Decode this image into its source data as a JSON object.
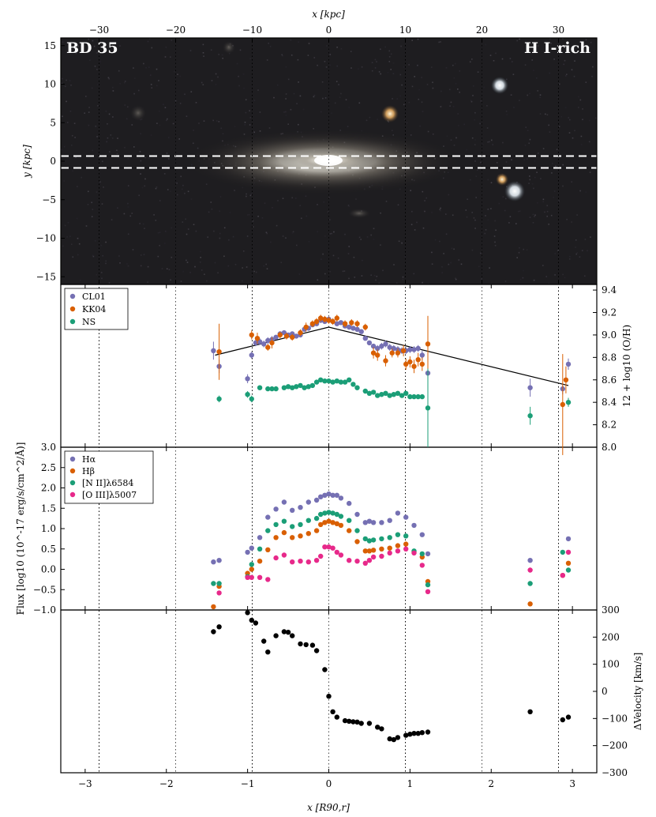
{
  "corner_left": "BD 35",
  "corner_right": "H I-rich",
  "x_bottom_label": "x [R90,r]",
  "x_top_label": "x [kpc]",
  "colors": {
    "CL01": "#7570b3",
    "KK04": "#d95f02",
    "NS": "#1b9e77",
    "Halpha": "#7570b3",
    "Hbeta": "#d95f02",
    "NII": "#1b9e77",
    "OIII": "#e7298a",
    "velocity": "#000000"
  },
  "chart_data": [
    {
      "type": "image",
      "panel": "image",
      "ylabel": "y [kpc]",
      "xlabel_top": "x [kpc]",
      "xlim": [
        -35,
        35
      ],
      "ylim": [
        -16,
        16
      ],
      "xticks": [
        -30,
        -20,
        -10,
        0,
        10,
        20,
        30
      ],
      "yticks": [
        -15,
        -10,
        -5,
        0,
        5,
        10,
        15
      ],
      "slit_y": [
        0.8,
        -0.8
      ]
    },
    {
      "type": "scatter",
      "panel": "metallicity",
      "ylabel": "12 + log10 (O/H)",
      "ylim": [
        8.0,
        9.45
      ],
      "yticks": [
        8.0,
        8.2,
        8.4,
        8.6,
        8.8,
        9.0,
        9.2,
        9.4
      ],
      "fit_line": {
        "x": [
          -1.4,
          0.0,
          2.95
        ],
        "y": [
          8.82,
          9.07,
          8.55
        ]
      },
      "series": [
        {
          "name": "CL01",
          "x": [
            -1.42,
            -1.35,
            -1.0,
            -0.95,
            -0.9,
            -0.85,
            -0.8,
            -0.75,
            -0.7,
            -0.65,
            -0.6,
            -0.55,
            -0.5,
            -0.45,
            -0.4,
            -0.35,
            -0.3,
            -0.25,
            -0.2,
            -0.15,
            -0.1,
            -0.05,
            0.0,
            0.05,
            0.1,
            0.15,
            0.2,
            0.25,
            0.3,
            0.35,
            0.4,
            0.45,
            0.5,
            0.55,
            0.6,
            0.65,
            0.7,
            0.75,
            0.8,
            0.85,
            0.9,
            0.95,
            1.0,
            1.05,
            1.1,
            1.15,
            1.22,
            2.48,
            2.88,
            2.95
          ],
          "y": [
            8.86,
            8.72,
            8.61,
            8.82,
            8.93,
            8.94,
            8.92,
            8.95,
            8.96,
            8.98,
            9.01,
            9.02,
            9.0,
            9.01,
            8.99,
            9.0,
            9.05,
            9.06,
            9.09,
            9.1,
            9.13,
            9.12,
            9.14,
            9.12,
            9.1,
            9.11,
            9.08,
            9.07,
            9.06,
            9.05,
            9.03,
            8.97,
            8.93,
            8.9,
            8.88,
            8.9,
            8.92,
            8.89,
            8.88,
            8.87,
            8.86,
            8.86,
            8.87,
            8.87,
            8.88,
            8.82,
            8.66,
            8.53,
            8.52,
            8.74
          ],
          "err": [
            0.08,
            0.06,
            0.04,
            0.03,
            0.03,
            0.03,
            0.03,
            0.03,
            0.03,
            0.02,
            0.02,
            0.02,
            0.02,
            0.02,
            0.02,
            0.02,
            0.02,
            0.02,
            0.02,
            0.02,
            0.02,
            0.02,
            0.02,
            0.02,
            0.02,
            0.02,
            0.02,
            0.02,
            0.02,
            0.02,
            0.02,
            0.02,
            0.02,
            0.02,
            0.03,
            0.03,
            0.03,
            0.03,
            0.03,
            0.03,
            0.03,
            0.03,
            0.03,
            0.03,
            0.03,
            0.04,
            0.1,
            0.08,
            0.05,
            0.05
          ]
        },
        {
          "name": "KK04",
          "x": [
            -1.35,
            -0.95,
            -0.88,
            -0.75,
            -0.7,
            -0.6,
            -0.52,
            -0.45,
            -0.35,
            -0.28,
            -0.2,
            -0.15,
            -0.1,
            -0.05,
            0.0,
            0.05,
            0.1,
            0.2,
            0.28,
            0.35,
            0.45,
            0.55,
            0.6,
            0.7,
            0.78,
            0.85,
            0.92,
            0.95,
            1.0,
            1.05,
            1.1,
            1.15,
            1.22,
            2.88,
            2.92
          ],
          "y": [
            8.85,
            9.0,
            8.97,
            8.89,
            8.93,
            9.0,
            8.99,
            8.98,
            9.02,
            9.07,
            9.1,
            9.12,
            9.15,
            9.14,
            9.13,
            9.12,
            9.15,
            9.1,
            9.11,
            9.1,
            9.07,
            8.84,
            8.82,
            8.77,
            8.84,
            8.84,
            8.86,
            8.74,
            8.76,
            8.72,
            8.78,
            8.74,
            8.92,
            8.38,
            8.6
          ],
          "err": [
            0.25,
            0.04,
            0.05,
            0.03,
            0.05,
            0.03,
            0.03,
            0.03,
            0.03,
            0.04,
            0.03,
            0.03,
            0.03,
            0.03,
            0.03,
            0.03,
            0.03,
            0.03,
            0.03,
            0.03,
            0.03,
            0.05,
            0.05,
            0.05,
            0.04,
            0.04,
            0.05,
            0.05,
            0.05,
            0.06,
            0.06,
            0.06,
            0.25,
            0.45,
            0.12
          ]
        },
        {
          "name": "NS",
          "x": [
            -1.35,
            -1.0,
            -0.95,
            -0.85,
            -0.75,
            -0.7,
            -0.65,
            -0.55,
            -0.5,
            -0.45,
            -0.4,
            -0.35,
            -0.3,
            -0.25,
            -0.2,
            -0.15,
            -0.1,
            -0.05,
            0.0,
            0.05,
            0.1,
            0.15,
            0.2,
            0.25,
            0.3,
            0.35,
            0.45,
            0.5,
            0.55,
            0.6,
            0.65,
            0.7,
            0.75,
            0.8,
            0.85,
            0.9,
            0.95,
            1.0,
            1.05,
            1.1,
            1.15,
            1.22,
            2.48,
            2.95
          ],
          "y": [
            8.43,
            8.47,
            8.43,
            8.53,
            8.52,
            8.52,
            8.52,
            8.53,
            8.54,
            8.53,
            8.54,
            8.55,
            8.53,
            8.54,
            8.55,
            8.58,
            8.6,
            8.59,
            8.59,
            8.58,
            8.59,
            8.58,
            8.58,
            8.6,
            8.56,
            8.53,
            8.5,
            8.48,
            8.49,
            8.46,
            8.47,
            8.48,
            8.46,
            8.47,
            8.48,
            8.46,
            8.48,
            8.45,
            8.45,
            8.45,
            8.45,
            8.35,
            8.28,
            8.4
          ],
          "err": [
            0.03,
            0.03,
            0.03,
            0.02,
            0.02,
            0.02,
            0.02,
            0.02,
            0.02,
            0.02,
            0.02,
            0.02,
            0.02,
            0.02,
            0.02,
            0.02,
            0.02,
            0.02,
            0.02,
            0.02,
            0.02,
            0.02,
            0.02,
            0.02,
            0.02,
            0.02,
            0.02,
            0.02,
            0.02,
            0.02,
            0.02,
            0.02,
            0.02,
            0.02,
            0.02,
            0.02,
            0.02,
            0.02,
            0.02,
            0.02,
            0.02,
            0.35,
            0.08,
            0.04
          ]
        }
      ]
    },
    {
      "type": "scatter",
      "panel": "flux",
      "ylabel": "Flux [log10 (10^-17 erg/s/cm^2/Å)]",
      "ylim": [
        -1.0,
        3.0
      ],
      "yticks": [
        -1.0,
        -0.5,
        0.0,
        0.5,
        1.0,
        1.5,
        2.0,
        2.5,
        3.0
      ],
      "series": [
        {
          "name": "Hα",
          "x": [
            -1.42,
            -1.35,
            -1.0,
            -0.95,
            -0.85,
            -0.75,
            -0.65,
            -0.55,
            -0.45,
            -0.35,
            -0.25,
            -0.15,
            -0.1,
            -0.05,
            0.0,
            0.05,
            0.1,
            0.15,
            0.25,
            0.35,
            0.45,
            0.5,
            0.55,
            0.65,
            0.75,
            0.85,
            0.95,
            1.05,
            1.15,
            1.22,
            2.48,
            2.95
          ],
          "y": [
            0.18,
            0.22,
            0.42,
            0.52,
            0.78,
            1.28,
            1.48,
            1.65,
            1.45,
            1.52,
            1.65,
            1.7,
            1.78,
            1.82,
            1.85,
            1.82,
            1.82,
            1.75,
            1.62,
            1.35,
            1.15,
            1.18,
            1.15,
            1.15,
            1.2,
            1.38,
            1.28,
            1.08,
            0.85,
            0.38,
            0.22,
            0.75
          ]
        },
        {
          "name": "Hβ",
          "x": [
            -1.42,
            -1.35,
            -1.0,
            -0.95,
            -0.85,
            -0.75,
            -0.65,
            -0.55,
            -0.45,
            -0.35,
            -0.25,
            -0.15,
            -0.1,
            -0.05,
            0.0,
            0.05,
            0.1,
            0.15,
            0.25,
            0.35,
            0.45,
            0.5,
            0.55,
            0.65,
            0.75,
            0.85,
            0.95,
            1.05,
            1.15,
            1.22,
            2.48,
            2.88,
            2.95
          ],
          "y": [
            -0.92,
            -0.42,
            -0.1,
            0.0,
            0.2,
            0.48,
            0.78,
            0.9,
            0.78,
            0.82,
            0.88,
            0.95,
            1.1,
            1.15,
            1.18,
            1.15,
            1.12,
            1.08,
            0.95,
            0.68,
            0.45,
            0.45,
            0.47,
            0.5,
            0.52,
            0.58,
            0.62,
            0.42,
            0.3,
            -0.3,
            -0.85,
            -0.15,
            0.15
          ]
        },
        {
          "name": "[N II]λ6584",
          "x": [
            -1.42,
            -1.35,
            -1.0,
            -0.95,
            -0.85,
            -0.75,
            -0.65,
            -0.55,
            -0.45,
            -0.35,
            -0.25,
            -0.15,
            -0.1,
            -0.05,
            0.0,
            0.05,
            0.1,
            0.15,
            0.25,
            0.35,
            0.45,
            0.5,
            0.55,
            0.65,
            0.75,
            0.85,
            0.95,
            1.05,
            1.15,
            1.22,
            2.48,
            2.88,
            2.95
          ],
          "y": [
            -0.35,
            -0.35,
            -0.18,
            0.12,
            0.5,
            0.95,
            1.1,
            1.18,
            1.05,
            1.1,
            1.2,
            1.25,
            1.35,
            1.38,
            1.4,
            1.38,
            1.35,
            1.3,
            1.2,
            0.95,
            0.75,
            0.7,
            0.72,
            0.75,
            0.78,
            0.85,
            0.82,
            0.45,
            0.38,
            -0.38,
            -0.35,
            0.42,
            -0.02
          ]
        },
        {
          "name": "[O III]λ5007",
          "x": [
            -1.35,
            -1.0,
            -0.95,
            -0.85,
            -0.75,
            -0.65,
            -0.55,
            -0.45,
            -0.35,
            -0.25,
            -0.15,
            -0.1,
            -0.05,
            0.0,
            0.05,
            0.1,
            0.15,
            0.25,
            0.35,
            0.45,
            0.5,
            0.55,
            0.65,
            0.75,
            0.85,
            0.95,
            1.05,
            1.15,
            1.22,
            2.48,
            2.88,
            2.95
          ],
          "y": [
            -0.58,
            -0.2,
            -0.2,
            -0.2,
            -0.25,
            0.28,
            0.35,
            0.18,
            0.2,
            0.18,
            0.22,
            0.32,
            0.55,
            0.55,
            0.52,
            0.42,
            0.35,
            0.22,
            0.2,
            0.15,
            0.22,
            0.3,
            0.32,
            0.4,
            0.45,
            0.5,
            0.4,
            0.1,
            -0.55,
            -0.02,
            -0.15,
            0.42
          ]
        }
      ]
    },
    {
      "type": "scatter",
      "panel": "velocity",
      "ylabel": "ΔVelocity [km/s]",
      "ylim": [
        -300,
        300
      ],
      "yticks": [
        -300,
        -200,
        -100,
        0,
        100,
        200,
        300
      ],
      "series": [
        {
          "name": "",
          "x": [
            -1.42,
            -1.35,
            -1.0,
            -0.95,
            -0.9,
            -0.8,
            -0.75,
            -0.65,
            -0.55,
            -0.5,
            -0.45,
            -0.35,
            -0.28,
            -0.2,
            -0.15,
            -0.05,
            0.0,
            0.05,
            0.1,
            0.2,
            0.25,
            0.3,
            0.35,
            0.4,
            0.5,
            0.6,
            0.65,
            0.75,
            0.8,
            0.85,
            0.95,
            1.0,
            1.05,
            1.1,
            1.15,
            1.22,
            2.48,
            2.88,
            2.95
          ],
          "y": [
            220,
            238,
            290,
            262,
            252,
            185,
            145,
            205,
            220,
            218,
            205,
            175,
            172,
            170,
            150,
            80,
            -18,
            -75,
            -95,
            -108,
            -110,
            -112,
            -113,
            -118,
            -118,
            -132,
            -138,
            -175,
            -178,
            -170,
            -162,
            -158,
            -155,
            -155,
            -152,
            -150,
            -75,
            -105,
            -95
          ]
        }
      ]
    }
  ],
  "image_panel": {
    "x_kpc_ticks": [
      "−30",
      "−20",
      "−10",
      "0",
      "10",
      "20",
      "30"
    ],
    "y_kpc_ticks": [
      "15",
      "10",
      "5",
      "0",
      "−5",
      "−10",
      "−15"
    ]
  },
  "bottom_axis": {
    "ticks": [
      "−3",
      "−2",
      "−1",
      "0",
      "1",
      "2",
      "3"
    ],
    "values": [
      -3,
      -2,
      -1,
      0,
      1,
      2,
      3
    ]
  }
}
